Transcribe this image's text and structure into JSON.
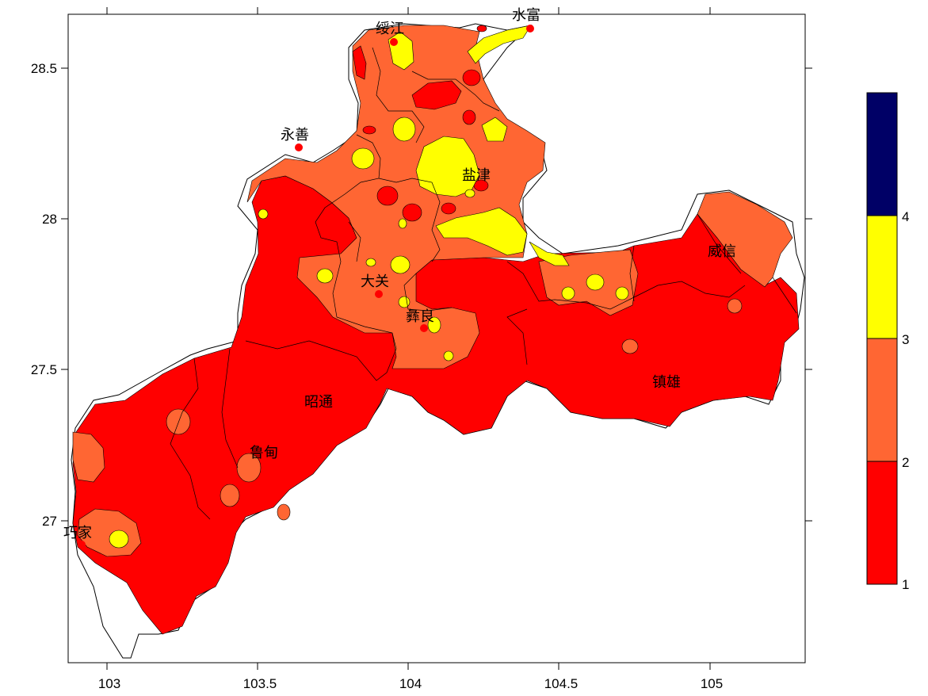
{
  "map": {
    "x_ticks": [
      "103",
      "103.5",
      "104",
      "104.5",
      "105"
    ],
    "y_ticks": [
      "28.5",
      "28",
      "27.5",
      "27"
    ],
    "places": [
      {
        "key": "suijiang",
        "name": "绥江"
      },
      {
        "key": "shuifu",
        "name": "水富"
      },
      {
        "key": "yongshan",
        "name": "永善"
      },
      {
        "key": "yanjin",
        "name": "盐津"
      },
      {
        "key": "daguan",
        "name": "大关"
      },
      {
        "key": "yiliang",
        "name": "彝良"
      },
      {
        "key": "weixin",
        "name": "威信"
      },
      {
        "key": "zhenxiong",
        "name": "镇雄"
      },
      {
        "key": "zhaotong",
        "name": "昭通"
      },
      {
        "key": "ludian",
        "name": "鲁甸"
      },
      {
        "key": "qiaojia",
        "name": "巧家"
      }
    ]
  },
  "legend": {
    "levels": [
      "1",
      "2",
      "3",
      "4"
    ],
    "colors": [
      "#ff0000",
      "#ff6633",
      "#ffff00",
      "#000066"
    ]
  }
}
